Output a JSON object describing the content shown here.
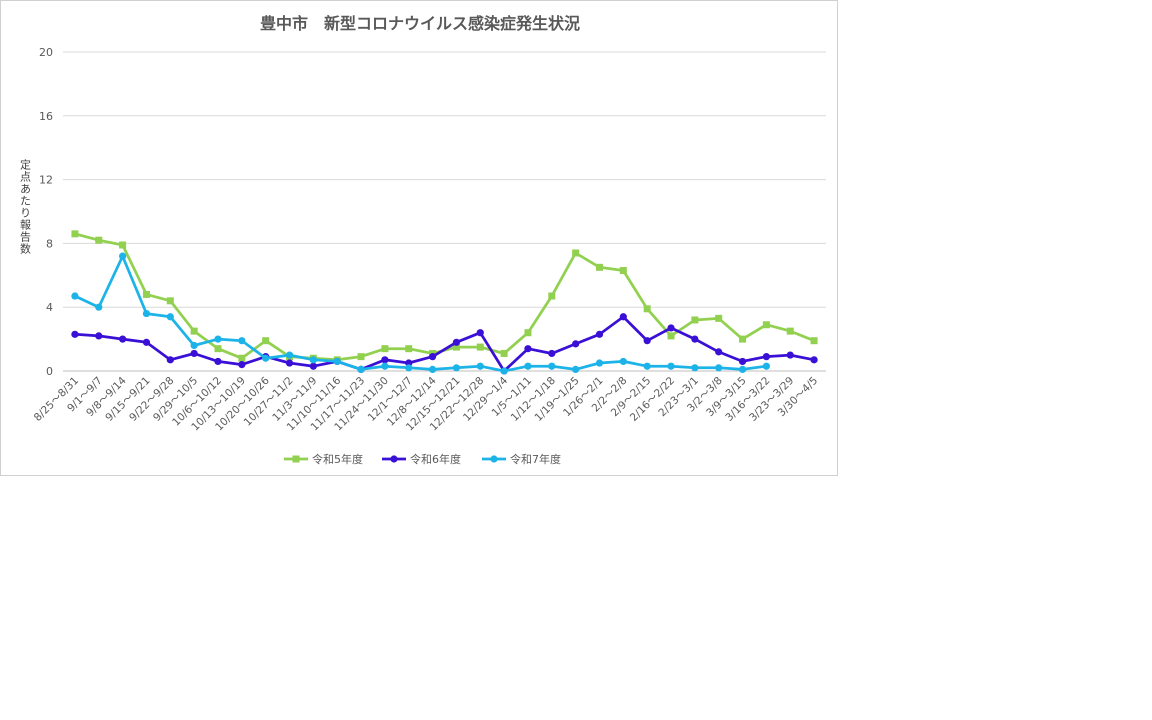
{
  "chart_data": {
    "type": "line",
    "title": "豊中市　新型コロナウイルス感染症発生状況",
    "ylabel": "定点あたり報告数",
    "xlabel": "",
    "ylim": [
      0,
      20
    ],
    "yticks": [
      0,
      4,
      8,
      12,
      16,
      20
    ],
    "grid": true,
    "legend_position": "bottom",
    "categories": [
      "8/25～8/31",
      "9/1～9/7",
      "9/8～9/14",
      "9/15～9/21",
      "9/22～9/28",
      "9/29～10/5",
      "10/6～10/12",
      "10/13～10/19",
      "10/20～10/26",
      "10/27～11/2",
      "11/3～11/9",
      "11/10～11/16",
      "11/17～11/23",
      "11/24～11/30",
      "12/1～12/7",
      "12/8～12/14",
      "12/15～12/21",
      "12/22～12/28",
      "12/29～1/4",
      "1/5～1/11",
      "1/12～1/18",
      "1/19～1/25",
      "1/26～2/1",
      "2/2～2/8",
      "2/9～2/15",
      "2/16～2/22",
      "2/23～3/1",
      "3/2～3/8",
      "3/9～3/15",
      "3/16～3/22",
      "3/23～3/29",
      "3/30～4/5"
    ],
    "series": [
      {
        "name": "令和5年度",
        "color": "#92d050",
        "marker": "square",
        "values": [
          8.6,
          8.2,
          7.9,
          4.8,
          4.4,
          2.5,
          1.4,
          0.8,
          1.9,
          0.9,
          0.8,
          0.7,
          0.9,
          1.4,
          1.4,
          1.1,
          1.5,
          1.5,
          1.1,
          2.4,
          4.7,
          7.4,
          6.5,
          6.3,
          3.9,
          2.2,
          3.2,
          3.3,
          2.0,
          2.9,
          2.5,
          1.9
        ]
      },
      {
        "name": "令和6年度",
        "color": "#3a0fd6",
        "marker": "circle",
        "values": [
          2.3,
          2.2,
          2.0,
          1.8,
          0.7,
          1.1,
          0.6,
          0.4,
          0.9,
          0.5,
          0.3,
          0.6,
          0.1,
          0.7,
          0.5,
          0.9,
          1.8,
          2.4,
          0.0,
          1.4,
          1.1,
          1.7,
          2.3,
          3.4,
          1.9,
          2.7,
          2.0,
          1.2,
          0.6,
          0.9,
          1.0,
          0.7
        ]
      },
      {
        "name": "令和7年度",
        "color": "#1cb3e8",
        "marker": "circle",
        "values": [
          4.7,
          4.0,
          7.2,
          3.6,
          3.4,
          1.6,
          2.0,
          1.9,
          0.8,
          1.0,
          0.7,
          0.6,
          0.1,
          0.3,
          0.2,
          0.1,
          0.2,
          0.3,
          0.0,
          0.3,
          0.3,
          0.1,
          0.5,
          0.6,
          0.3,
          0.3,
          0.2,
          0.2,
          0.1,
          0.3,
          null,
          null
        ]
      }
    ]
  }
}
